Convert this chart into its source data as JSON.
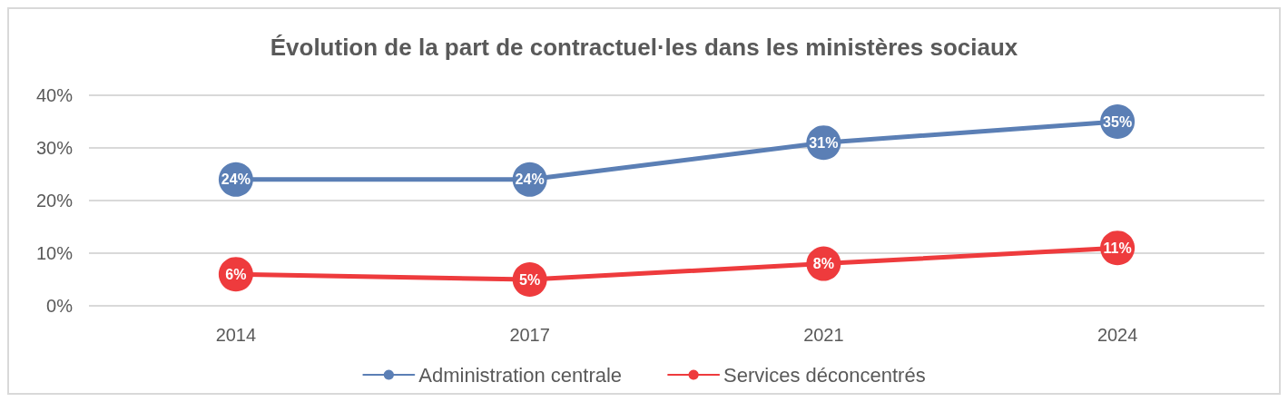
{
  "chart_data": {
    "type": "line",
    "title": "Évolution de la part de contractuel·les dans les ministères sociaux",
    "categories": [
      "2014",
      "2017",
      "2021",
      "2024"
    ],
    "series": [
      {
        "name": "Administration centrale",
        "color": "#5b7fb5",
        "values": [
          24,
          24,
          31,
          35
        ],
        "value_labels": [
          "24%",
          "24%",
          "31%",
          "35%"
        ]
      },
      {
        "name": "Services déconcentrés",
        "color": "#ee3b3d",
        "values": [
          6,
          5,
          8,
          11
        ],
        "value_labels": [
          "6%",
          "5%",
          "8%",
          "11%"
        ]
      }
    ],
    "ylim": [
      0,
      40
    ],
    "yticks": [
      {
        "value": 0,
        "label": "0%"
      },
      {
        "value": 10,
        "label": "10%"
      },
      {
        "value": 20,
        "label": "20%"
      },
      {
        "value": 30,
        "label": "30%"
      },
      {
        "value": 40,
        "label": "40%"
      }
    ],
    "grid": "y",
    "legend": "bottom",
    "marker": "circle",
    "line_style": "solid"
  }
}
